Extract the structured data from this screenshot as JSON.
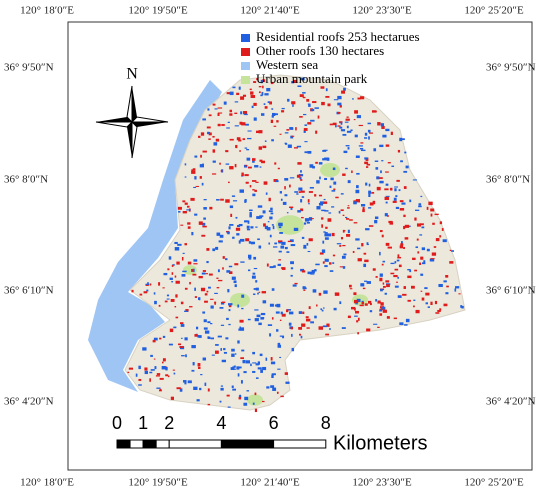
{
  "axes": {
    "top": [
      "120° 18′0″E",
      "120° 19′50″E",
      "120° 21′40″E",
      "120° 23′30″E",
      "120° 25′20″E"
    ],
    "bottom": [
      "120° 18′0″E",
      "120° 19′50″E",
      "120° 21′40″E",
      "120° 23′30″E",
      "120° 25′20″E"
    ],
    "left": [
      "36° 9′50″N",
      "36° 8′0″N",
      "36° 6′10″N",
      "36° 4′20″N"
    ],
    "right": [
      "36° 9′50″N",
      "36° 8′0″N",
      "36° 6′10″N",
      "36° 4′20″N"
    ]
  },
  "legend": [
    {
      "label": "Residential roofs 253 hectarues",
      "color": "#1f5fe0"
    },
    {
      "label": "Other roofs 130 hectares",
      "color": "#e01b1b"
    },
    {
      "label": "Western sea",
      "color": "#9fc5f5"
    },
    {
      "label": "Urban mountain park",
      "color": "#c5e39a"
    }
  ],
  "north": "N",
  "scale_bar": {
    "labels": [
      0,
      1,
      2,
      4,
      6,
      8
    ],
    "unit": "Kilometers"
  }
}
